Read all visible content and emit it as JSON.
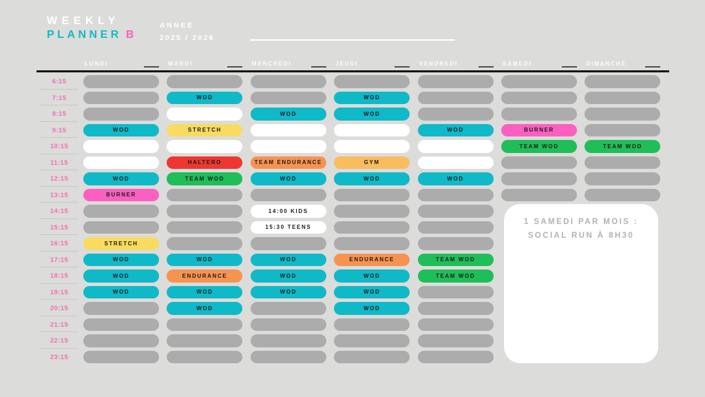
{
  "palette": {
    "background": "#DCDCDA",
    "pill_gray": "#ACACAC",
    "pill_white": "#FFFFFF",
    "time_pink": "#F06EB4",
    "day_header_text": "#FDFDFD",
    "pill_label_dark": "#1B1B1B",
    "note_text_gray": "#B2B2B2",
    "title_white": "#FFFFFF",
    "title_teal": "#12B9C7",
    "title_pink": "#FB60C1"
  },
  "header": {
    "title_line1": "WEEKLY",
    "title_line2": "PLANNER",
    "title_suffix": "B",
    "year_label": "ANNEE",
    "year_value": "2025 / 2026"
  },
  "days": [
    "LUNDI",
    "MARDI",
    "MERCREDI",
    "JEUDI",
    "VENDREDI",
    "SAMEDI",
    "DIMANCHE"
  ],
  "times": [
    "6:15",
    "7:15",
    "8:15",
    "9:15",
    "10:15",
    "11:15",
    "12:15",
    "13:15",
    "14:15",
    "15:15",
    "16:15",
    "17:15",
    "18:15",
    "19:15",
    "20:15",
    "21:15",
    "22:15",
    "23:15"
  ],
  "label_colors": {
    "WOD": "#10B9C8",
    "STRETCH": "#F9DB62",
    "HALTERO": "#EF3731",
    "TEAM WOD": "#1FBE59",
    "BURNER": "#FB60C1",
    "ENDURANCE": "#F79351",
    "TEAM ENDURANCE": "#F79351",
    "GYM": "#FABD5D",
    "14:00 KIDS": "#FFFFFF",
    "15:30 TEENS": "#FFFFFF"
  },
  "schedule": {
    "LUNDI": [
      "-",
      "-",
      "-",
      "WOD",
      "_",
      "_",
      "WOD",
      "BURNER",
      "-",
      "-",
      "STRETCH",
      "WOD",
      "WOD",
      "WOD",
      "-",
      "-",
      "-",
      "-"
    ],
    "MARDI": [
      "-",
      "WOD",
      "_",
      "STRETCH",
      "_",
      "HALTERO",
      "TEAM WOD",
      "-",
      "-",
      "-",
      "-",
      "WOD",
      "ENDURANCE",
      "WOD",
      "WOD",
      "-",
      "-",
      "-"
    ],
    "MERCREDI": [
      "-",
      "-",
      "WOD",
      "_",
      "_",
      "TEAM ENDURANCE",
      "WOD",
      "-",
      "14:00 KIDS",
      "15:30 TEENS",
      "-",
      "WOD",
      "WOD",
      "WOD",
      "-",
      "-",
      "-",
      "-"
    ],
    "JEUDI": [
      "-",
      "WOD",
      "WOD",
      "_",
      "_",
      "GYM",
      "WOD",
      "-",
      "-",
      "-",
      "-",
      "ENDURANCE",
      "WOD",
      "WOD",
      "WOD",
      "-",
      "-",
      "-"
    ],
    "VENDREDI": [
      "-",
      "-",
      "-",
      "WOD",
      "_",
      "_",
      "WOD",
      "-",
      "-",
      "-",
      "-",
      "TEAM WOD",
      "TEAM WOD",
      "-",
      "-",
      "-",
      "-",
      "-"
    ],
    "SAMEDI": [
      "-",
      "-",
      "-",
      "BURNER",
      "TEAM WOD",
      "-",
      "-",
      "-"
    ],
    "DIMANCHE": [
      "-",
      "-",
      "-",
      "-",
      "TEAM WOD",
      "-",
      "-",
      "-"
    ]
  },
  "note_box": {
    "line1": "1 SAMEDI PAR MOIS :",
    "line2": "SOCIAL RUN À 8H30"
  }
}
